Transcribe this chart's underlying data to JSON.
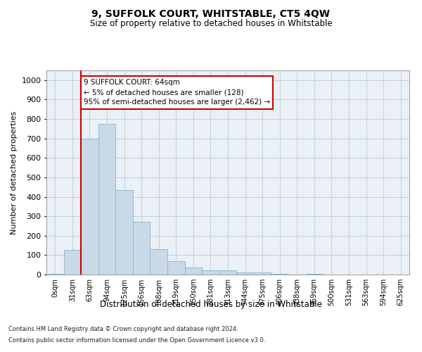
{
  "title1": "9, SUFFOLK COURT, WHITSTABLE, CT5 4QW",
  "title2": "Size of property relative to detached houses in Whitstable",
  "xlabel": "Distribution of detached houses by size in Whitstable",
  "ylabel": "Number of detached properties",
  "bar_labels": [
    "0sqm",
    "31sqm",
    "63sqm",
    "94sqm",
    "125sqm",
    "156sqm",
    "188sqm",
    "219sqm",
    "250sqm",
    "281sqm",
    "313sqm",
    "344sqm",
    "375sqm",
    "406sqm",
    "438sqm",
    "469sqm",
    "500sqm",
    "531sqm",
    "563sqm",
    "594sqm",
    "625sqm"
  ],
  "bar_values": [
    5,
    125,
    700,
    775,
    435,
    270,
    130,
    70,
    38,
    22,
    20,
    10,
    12,
    3,
    0,
    5,
    0,
    0,
    0,
    0,
    0
  ],
  "bar_color": "#c9d9e8",
  "bar_edge_color": "#8ab4cc",
  "vline_color": "#cc0000",
  "annotation_text": "9 SUFFOLK COURT: 64sqm\n← 5% of detached houses are smaller (128)\n95% of semi-detached houses are larger (2,462) →",
  "annotation_box_color": "#ffffff",
  "annotation_box_edge": "#cc0000",
  "ylim": [
    0,
    1050
  ],
  "yticks": [
    0,
    100,
    200,
    300,
    400,
    500,
    600,
    700,
    800,
    900,
    1000
  ],
  "footer1": "Contains HM Land Registry data © Crown copyright and database right 2024.",
  "footer2": "Contains public sector information licensed under the Open Government Licence v3.0.",
  "bg_color": "#eaf0f6",
  "grid_color": "#b8ccd8"
}
